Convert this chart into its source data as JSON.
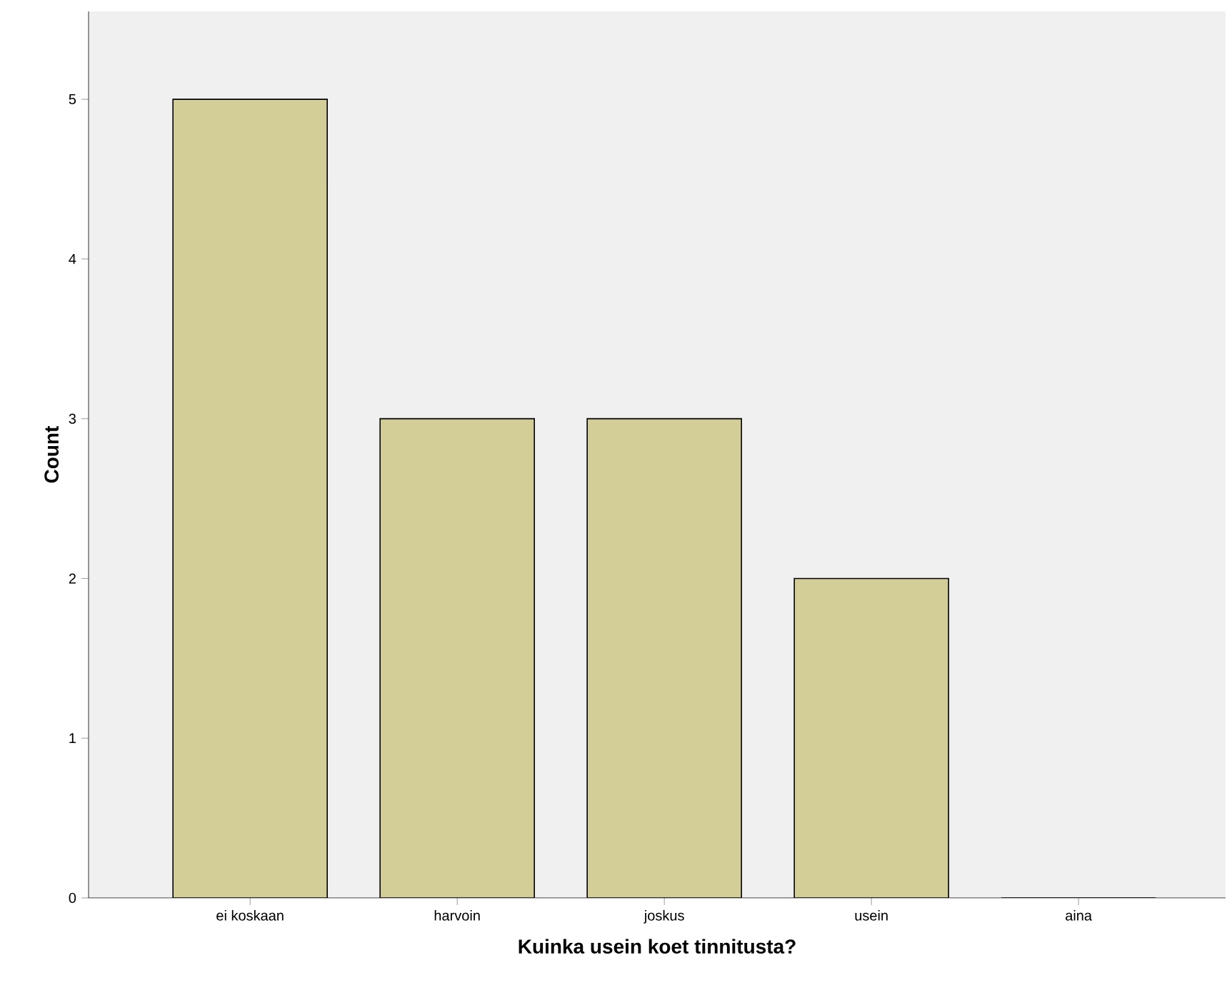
{
  "chart_data": {
    "type": "bar",
    "xlabel": "Kuinka usein koet tinnitusta?",
    "ylabel": "Count",
    "categories": [
      "ei koskaan",
      "harvoin",
      "joskus",
      "usein",
      "aina"
    ],
    "values": [
      5,
      3,
      3,
      2,
      0
    ],
    "color": "#d3ce97",
    "ylim": [
      0,
      5.55
    ],
    "yticks": [
      0,
      1,
      2,
      3,
      4,
      5
    ],
    "grid": false
  }
}
